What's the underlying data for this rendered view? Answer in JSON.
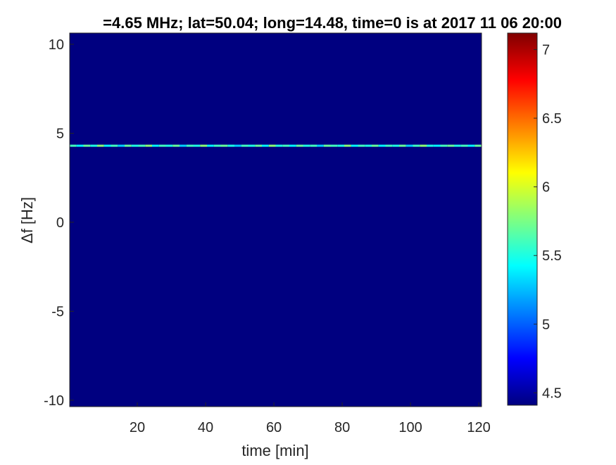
{
  "chart_data": {
    "type": "heatmap",
    "title": "=4.65 MHz;  lat=50.04; long=14.48, time=0 is at 2017 11 06 20:00",
    "xlabel": "time [min]",
    "ylabel": "Δf [Hz]",
    "xlim": [
      0.2,
      120.8
    ],
    "ylim": [
      -10.36,
      10.63
    ],
    "xticks": [
      20,
      40,
      60,
      80,
      100,
      120
    ],
    "yticks": [
      10,
      5,
      0,
      -5,
      -10
    ],
    "colormap": "jet",
    "clim": [
      4.41,
      7.12
    ],
    "colorbar_ticks": [
      4.5,
      5,
      5.5,
      6,
      6.5,
      7
    ],
    "background_value": 4.41,
    "signal_line": {
      "frequency_hz": 4.3,
      "time_range": [
        0.2,
        120.8
      ],
      "values": [
        5.6,
        5.4,
        5.7,
        5.5,
        5.8,
        5.4,
        5.6,
        5.3,
        5.7,
        5.5,
        5.6,
        5.8,
        5.4,
        5.6,
        5.5,
        5.7,
        5.3,
        5.6,
        5.5,
        5.8,
        5.4,
        5.6,
        5.7,
        5.5,
        5.3,
        5.6,
        5.5,
        5.7,
        5.4,
        5.8,
        5.5,
        5.6,
        5.4,
        5.7,
        5.5,
        5.6,
        5.3,
        5.7,
        5.6,
        5.5,
        5.8,
        5.4,
        5.6,
        5.5,
        5.7,
        5.4,
        5.6,
        5.5,
        5.7,
        5.3,
        5.6,
        5.8,
        5.5,
        5.4,
        5.6,
        5.7,
        5.5,
        5.6,
        5.4,
        5.7
      ]
    }
  }
}
